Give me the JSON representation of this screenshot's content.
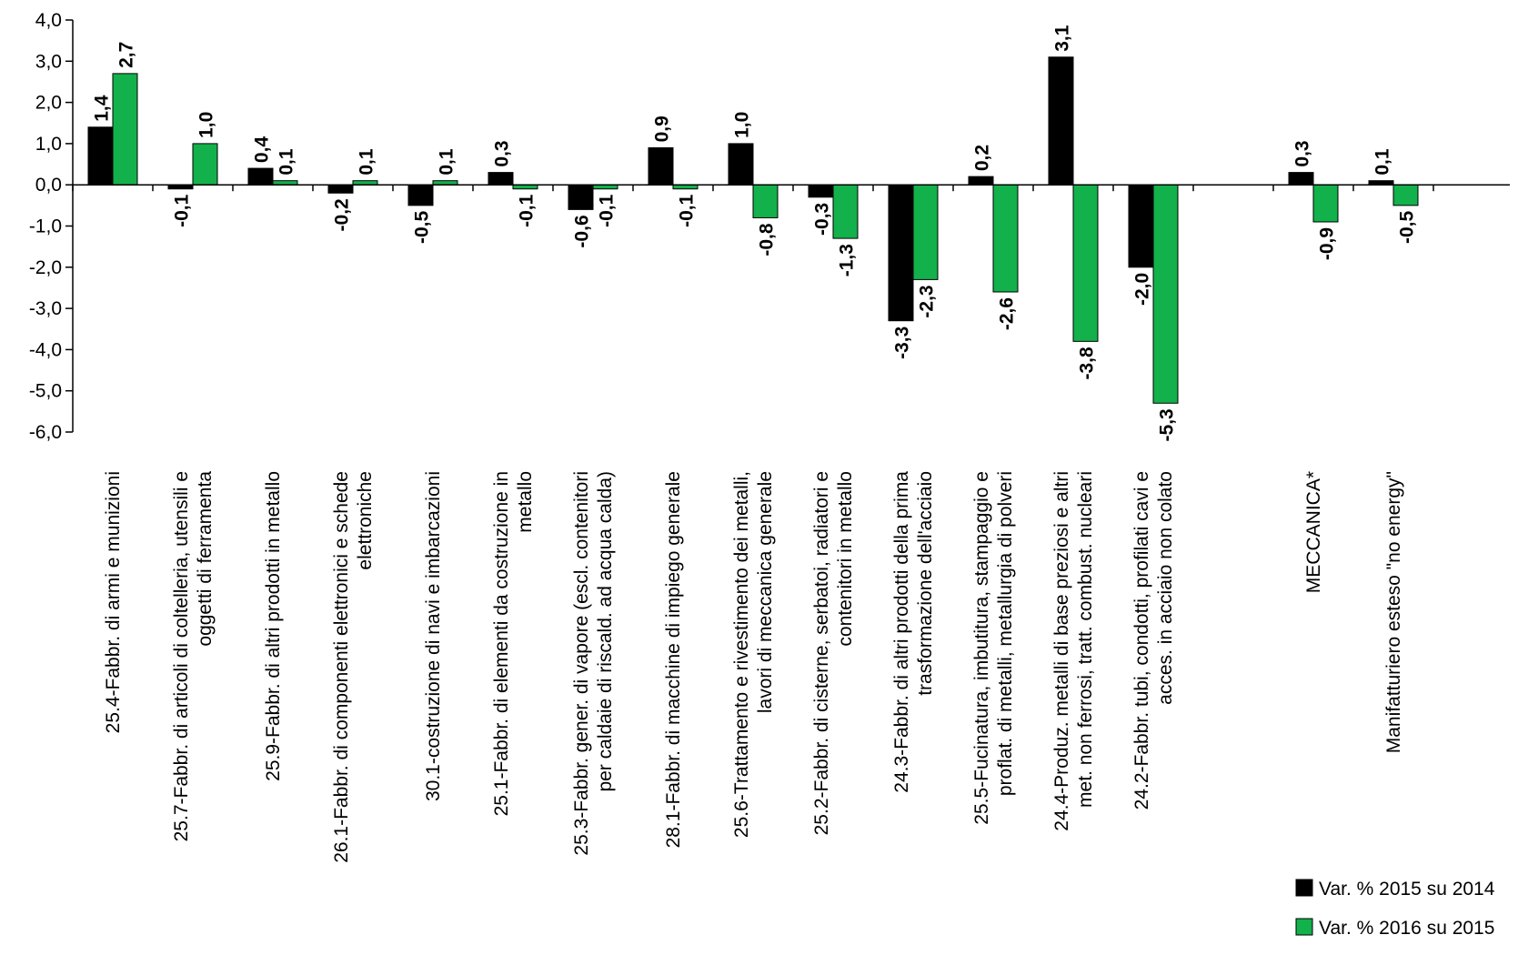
{
  "chart_data": {
    "type": "bar",
    "title": "",
    "xlabel": "",
    "ylabel": "",
    "ylim": [
      -6,
      4
    ],
    "yticks": [
      "4,0",
      "3,0",
      "2,0",
      "1,0",
      "0,0",
      "-1,0",
      "-2,0",
      "-3,0",
      "-4,0",
      "-5,0",
      "-6,0"
    ],
    "grid": false,
    "legend_position": "bottom-right",
    "categories": [
      "25.4-Fabbr. di armi e munizioni",
      "25.7-Fabbr. di articoli di coltelleria, utensili e oggetti di ferramenta",
      "25.9-Fabbr. di altri prodotti in metallo",
      "26.1-Fabbr. di componenti elettronici e schede elettroniche",
      "30.1-costruzione di navi e imbarcazioni",
      "25.1-Fabbr. di elementi da costruzione in metallo",
      "25.3-Fabbr. gener. di vapore (escl. contenitori per caldaie di riscald. ad acqua calda)",
      "28.1-Fabbr. di macchine di impiego generale",
      "25.6-Trattamento e rivestimento dei metalli, lavori di meccanica generale",
      "25.2-Fabbr. di cisterne, serbatoi, radiatori e contenitori in metallo",
      "24.3-Fabbr. di altri prodotti della prima trasformazione dell'acciaio",
      "25.5-Fucinatura, imbutitura, stampaggio e proflat. di metalli, metallurgia di polveri",
      "24.4-Produz. metalli di base preziosi e altri met. non ferrosi, tratt. combust. nucleari",
      "24.2-Fabbr. tubi, condotti, profilati cavi e acces. in acciaio non colato",
      "",
      "MECCANICA*",
      "Manifatturiero esteso \"no energy\""
    ],
    "category_lines": [
      [
        "25.4-Fabbr. di armi e munizioni"
      ],
      [
        "25.7-Fabbr. di articoli di coltelleria, utensili e",
        "oggetti di ferramenta"
      ],
      [
        "25.9-Fabbr. di altri prodotti in metallo"
      ],
      [
        "26.1-Fabbr. di componenti elettronici e schede",
        "elettroniche"
      ],
      [
        "30.1-costruzione di navi e imbarcazioni"
      ],
      [
        "25.1-Fabbr. di elementi da costruzione in",
        "metallo"
      ],
      [
        "25.3-Fabbr. gener. di vapore (escl. contenitori",
        "per caldaie di riscald. ad acqua calda)"
      ],
      [
        "28.1-Fabbr. di macchine di impiego generale"
      ],
      [
        "25.6-Trattamento e rivestimento dei metalli,",
        "lavori di meccanica generale"
      ],
      [
        "25.2-Fabbr. di cisterne, serbatoi, radiatori e",
        "contenitori in metallo"
      ],
      [
        "24.3-Fabbr. di altri prodotti della prima",
        "trasformazione dell'acciaio"
      ],
      [
        "25.5-Fucinatura, imbutitura, stampaggio e",
        "proflat. di metalli, metallurgia di polveri"
      ],
      [
        "24.4-Produz. metalli di base preziosi e altri",
        "met. non ferrosi, tratt. combust. nucleari"
      ],
      [
        "24.2-Fabbr. tubi, condotti, profilati cavi e",
        "acces. in acciaio non colato"
      ],
      [],
      [
        "MECCANICA*"
      ],
      [
        "Manifatturiero esteso \"no energy\""
      ]
    ],
    "series": [
      {
        "name": "Var. % 2015 su 2014",
        "color": "#000000",
        "values": [
          1.4,
          -0.1,
          0.4,
          -0.2,
          -0.5,
          0.3,
          -0.6,
          0.9,
          1.0,
          -0.3,
          -3.3,
          0.2,
          3.1,
          -2.0,
          null,
          0.3,
          0.1
        ],
        "labels": [
          "1,4",
          "-0,1",
          "0,4",
          "-0,2",
          "-0,5",
          "0,3",
          "-0,6",
          "0,9",
          "1,0",
          "-0,3",
          "-3,3",
          "0,2",
          "3,1",
          "-2,0",
          "",
          "0,3",
          "0,1"
        ]
      },
      {
        "name": "Var. % 2016 su 2015",
        "color": "#12b14b",
        "values": [
          2.7,
          1.0,
          0.1,
          0.1,
          0.1,
          -0.1,
          -0.1,
          -0.1,
          -0.8,
          -1.3,
          -2.3,
          -2.6,
          -3.8,
          -5.3,
          null,
          -0.9,
          -0.5
        ],
        "labels": [
          "2,7",
          "1,0",
          "0,1",
          "0,1",
          "0,1",
          "-0,1",
          "-0,1",
          "-0,1",
          "-0,8",
          "-1,3",
          "-2,3",
          "-2,6",
          "-3,8",
          "-5,3",
          "",
          "-0,9",
          "-0,5"
        ]
      }
    ]
  }
}
